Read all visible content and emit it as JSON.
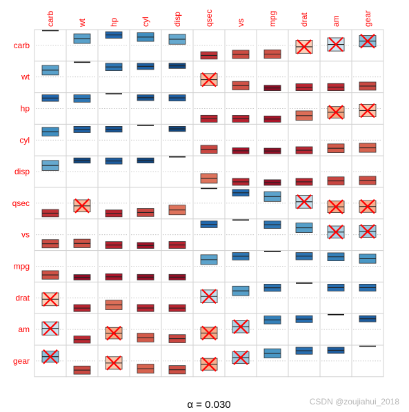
{
  "chart_data": {
    "type": "heatmap",
    "variant": "correlation-interval-matrix",
    "variables": [
      "carb",
      "wt",
      "hp",
      "cyl",
      "disp",
      "qsec",
      "vs",
      "mpg",
      "drat",
      "am",
      "gear"
    ],
    "alpha_label": "α = 0.030",
    "cross_marker_color": "#ff0000",
    "colorscale": "RdBu (red = negative, blue = positive)",
    "matrix": [
      [
        1.0,
        0.43,
        0.75,
        0.53,
        0.39,
        -0.66,
        -0.57,
        -0.55,
        -0.09,
        0.06,
        0.27
      ],
      [
        0.43,
        1.0,
        0.66,
        0.78,
        0.89,
        -0.17,
        -0.55,
        -0.87,
        -0.71,
        -0.69,
        -0.58
      ],
      [
        0.75,
        0.66,
        1.0,
        0.83,
        0.79,
        -0.71,
        -0.72,
        -0.78,
        -0.45,
        -0.24,
        -0.13
      ],
      [
        0.53,
        0.78,
        0.83,
        1.0,
        0.9,
        -0.59,
        -0.81,
        -0.85,
        -0.7,
        -0.52,
        -0.49
      ],
      [
        0.39,
        0.89,
        0.79,
        0.9,
        1.0,
        -0.43,
        -0.71,
        -0.85,
        -0.71,
        -0.59,
        -0.56
      ],
      [
        -0.66,
        -0.17,
        -0.71,
        -0.59,
        -0.43,
        1.0,
        0.74,
        0.42,
        0.09,
        -0.23,
        -0.21
      ],
      [
        -0.57,
        -0.55,
        -0.72,
        -0.81,
        -0.71,
        0.74,
        1.0,
        0.66,
        0.44,
        0.17,
        0.21
      ],
      [
        -0.55,
        -0.87,
        -0.78,
        -0.85,
        -0.85,
        0.42,
        0.66,
        1.0,
        0.68,
        0.6,
        0.48
      ],
      [
        -0.09,
        -0.71,
        -0.45,
        -0.7,
        -0.71,
        0.09,
        0.44,
        0.68,
        1.0,
        0.71,
        0.7
      ],
      [
        0.06,
        -0.69,
        -0.24,
        -0.52,
        -0.59,
        -0.23,
        0.17,
        0.6,
        0.71,
        1.0,
        0.79
      ],
      [
        0.27,
        -0.58,
        -0.13,
        -0.49,
        -0.56,
        -0.21,
        0.21,
        0.48,
        0.7,
        0.79,
        1.0
      ]
    ],
    "non_significant_pairs": [
      [
        "carb",
        "drat"
      ],
      [
        "carb",
        "am"
      ],
      [
        "carb",
        "gear"
      ],
      [
        "wt",
        "qsec"
      ],
      [
        "hp",
        "am"
      ],
      [
        "hp",
        "gear"
      ],
      [
        "qsec",
        "drat"
      ],
      [
        "qsec",
        "am"
      ],
      [
        "qsec",
        "gear"
      ],
      [
        "vs",
        "am"
      ],
      [
        "vs",
        "gear"
      ]
    ],
    "grid": true,
    "legend": "none"
  },
  "watermark": "CSDN @zoujiahui_2018"
}
